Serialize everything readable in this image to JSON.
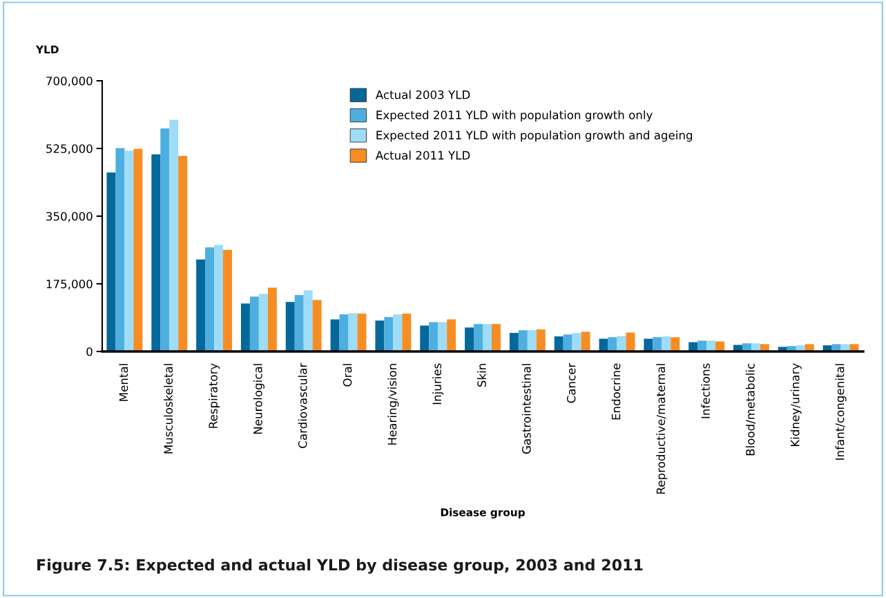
{
  "chart_data": {
    "type": "bar",
    "title": "Figure 7.5: Expected and actual YLD by disease group, 2003 and 2011",
    "xlabel": "Disease group",
    "ylabel": "YLD",
    "categories": [
      "Mental",
      "Musculoskeletal",
      "Respiratory",
      "Neurological",
      "Cardiovascular",
      "Oral",
      "Hearing/vision",
      "Injuries",
      "Skin",
      "Gastrointestinal",
      "Cancer",
      "Endocrine",
      "Reproductive/maternal",
      "Infections",
      "Blood/metabolic",
      "Kidney/urinary",
      "Infant/congenital"
    ],
    "series": [
      {
        "name": "Actual 2003 YLD",
        "color": "#04689b",
        "values": [
          463000,
          510000,
          238000,
          124000,
          128000,
          83000,
          80000,
          67000,
          62000,
          48000,
          39000,
          33000,
          33000,
          24000,
          17000,
          12000,
          16000
        ]
      },
      {
        "name": "Expected 2011 YLD with population growth only",
        "color": "#4eaee0",
        "values": [
          526000,
          577000,
          269000,
          142000,
          146000,
          96000,
          89000,
          76000,
          71000,
          55000,
          44000,
          37000,
          37000,
          28000,
          21000,
          14000,
          19000
        ]
      },
      {
        "name": "Expected 2011 YLD with population growth and ageing",
        "color": "#9edcf7",
        "values": [
          519000,
          599000,
          276000,
          149000,
          158000,
          99000,
          96000,
          76000,
          71000,
          55000,
          48000,
          40000,
          39000,
          28000,
          21000,
          16000,
          19000
        ]
      },
      {
        "name": "Actual 2011 YLD",
        "color": "#f68d24",
        "values": [
          524000,
          506000,
          263000,
          165000,
          133000,
          98000,
          98000,
          83000,
          71000,
          57000,
          51000,
          49000,
          37000,
          26000,
          19000,
          19000,
          19000
        ]
      }
    ],
    "ylim": [
      0,
      700000
    ],
    "yticks": [
      {
        "value": 0,
        "label": "0"
      },
      {
        "value": 175000,
        "label": "175,000"
      },
      {
        "value": 350000,
        "label": "350,000"
      },
      {
        "value": 525000,
        "label": "525,000"
      },
      {
        "value": 700000,
        "label": "700,000"
      }
    ],
    "grid": false,
    "legend": "top right"
  }
}
